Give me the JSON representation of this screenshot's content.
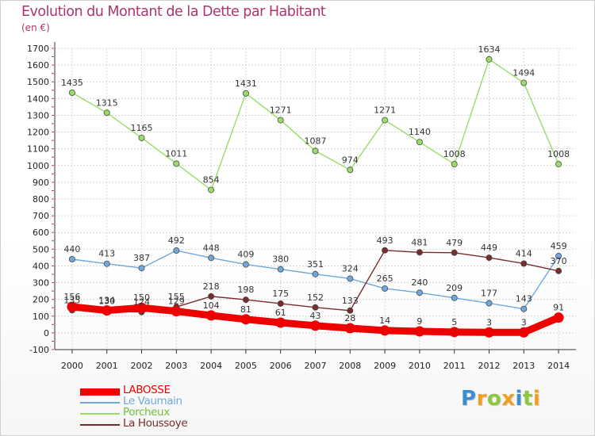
{
  "header": {
    "title": "Evolution du Montant de la Dette par Habitant",
    "subtitle": "(en €)"
  },
  "brand": {
    "letters": [
      "P",
      "r",
      "o",
      "x",
      "i",
      "t",
      "i"
    ],
    "colors": [
      "#3a8fd3",
      "#f0a020",
      "#8dc63f",
      "#f0a020",
      "#3a8fd3",
      "#8dc63f",
      "#f0a020"
    ]
  },
  "chart_data": {
    "type": "line",
    "x": [
      "2000",
      "2001",
      "2002",
      "2003",
      "2004",
      "2005",
      "2006",
      "2007",
      "2008",
      "2009",
      "2010",
      "2011",
      "2012",
      "2013",
      "2014"
    ],
    "ylim": [
      -100,
      1700
    ],
    "yticks": [
      -100,
      0,
      100,
      200,
      300,
      400,
      500,
      600,
      700,
      800,
      900,
      1000,
      1100,
      1200,
      1300,
      1400,
      1500,
      1600,
      1700
    ],
    "grid": true,
    "series": [
      {
        "name": "Porcheux",
        "color": "#99dd66",
        "values": [
          1435,
          1315,
          1165,
          1011,
          854,
          1431,
          1271,
          1087,
          974,
          1271,
          1140,
          1008,
          1634,
          1494,
          1008
        ],
        "labels": [
          "1435",
          "1315",
          "1165",
          "1011",
          "854",
          "1431",
          "1271",
          "1087",
          "974",
          "1271",
          "1140",
          "1008",
          "1634",
          "1494",
          "1008"
        ]
      },
      {
        "name": "Le Vaumain",
        "color": "#6fa8dc",
        "values": [
          440,
          413,
          387,
          492,
          448,
          409,
          380,
          351,
          324,
          265,
          240,
          209,
          177,
          143,
          459
        ],
        "labels": [
          "440",
          "413",
          "387",
          "492",
          "448",
          "409",
          "380",
          "351",
          "324",
          "265",
          "240",
          "209",
          "177",
          "143",
          "459"
        ]
      },
      {
        "name": "La Houssoye",
        "color": "#7a2c2c",
        "values": [
          135,
          130,
          124,
          155,
          218,
          198,
          175,
          152,
          133,
          493,
          481,
          479,
          449,
          414,
          370
        ],
        "labels": [
          "135",
          "130",
          "124",
          "155",
          "218",
          "198",
          "175",
          "152",
          "133",
          "493",
          "481",
          "479",
          "449",
          "414",
          "370"
        ]
      },
      {
        "name": "LABOSSE",
        "color": "#ee0000",
        "values": [
          156,
          134,
          150,
          129,
          104,
          81,
          61,
          43,
          28,
          14,
          9,
          5,
          3,
          3,
          91
        ],
        "labels": [
          "156",
          "134",
          "150",
          "129",
          "104",
          "81",
          "61",
          "43",
          "28",
          "14",
          "9",
          "5",
          "3",
          "3",
          "91"
        ]
      }
    ],
    "legend": {
      "position": "bottom-left",
      "order": [
        "LABOSSE",
        "Le Vaumain",
        "Porcheux",
        "La Houssoye"
      ]
    }
  }
}
